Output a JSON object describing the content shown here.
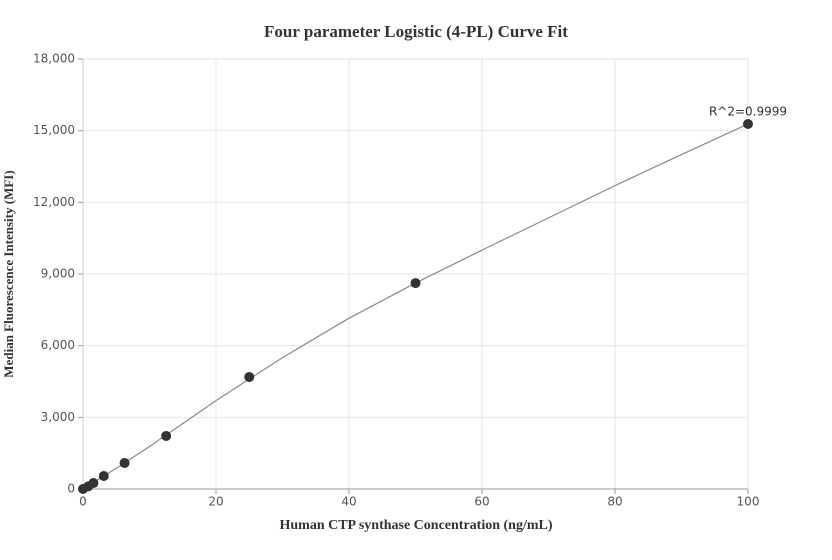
{
  "chart_data": {
    "type": "scatter",
    "title": "Four parameter Logistic (4-PL) Curve Fit",
    "x_label": "Human CTP synthase Concentration (ng/mL)",
    "y_label": "Median Fluorescence Intensity (MFI)",
    "annotation": "R^2=0.9999",
    "x": [
      0,
      0.78125,
      1.5625,
      3.125,
      6.25,
      12.5,
      25,
      50,
      100
    ],
    "values": [
      0,
      110,
      250,
      545,
      1090,
      2220,
      4690,
      8620,
      15280
    ],
    "point_color": "#333333",
    "fit": {
      "x": [
        0,
        5,
        10,
        20,
        30,
        40,
        50,
        60,
        70,
        80,
        90,
        100
      ],
      "values": [
        0,
        870,
        1780,
        3700,
        5500,
        7150,
        8620,
        10000,
        11350,
        12700,
        14000,
        15280
      ],
      "color": "#888888"
    },
    "xlim": [
      0,
      100
    ],
    "xticks": [
      0,
      20,
      40,
      60,
      80,
      100
    ],
    "ylim": [
      0,
      18000
    ],
    "yticks": [
      0,
      {
        "value": 3000,
        "label": "3,000"
      },
      {
        "value": 6000,
        "label": "6,000"
      },
      {
        "value": 9000,
        "label": "9,000"
      },
      {
        "value": 12000,
        "label": "12,000"
      },
      {
        "value": 15000,
        "label": "15,000"
      },
      {
        "value": 18000,
        "label": "18,000"
      }
    ],
    "grid": true
  }
}
